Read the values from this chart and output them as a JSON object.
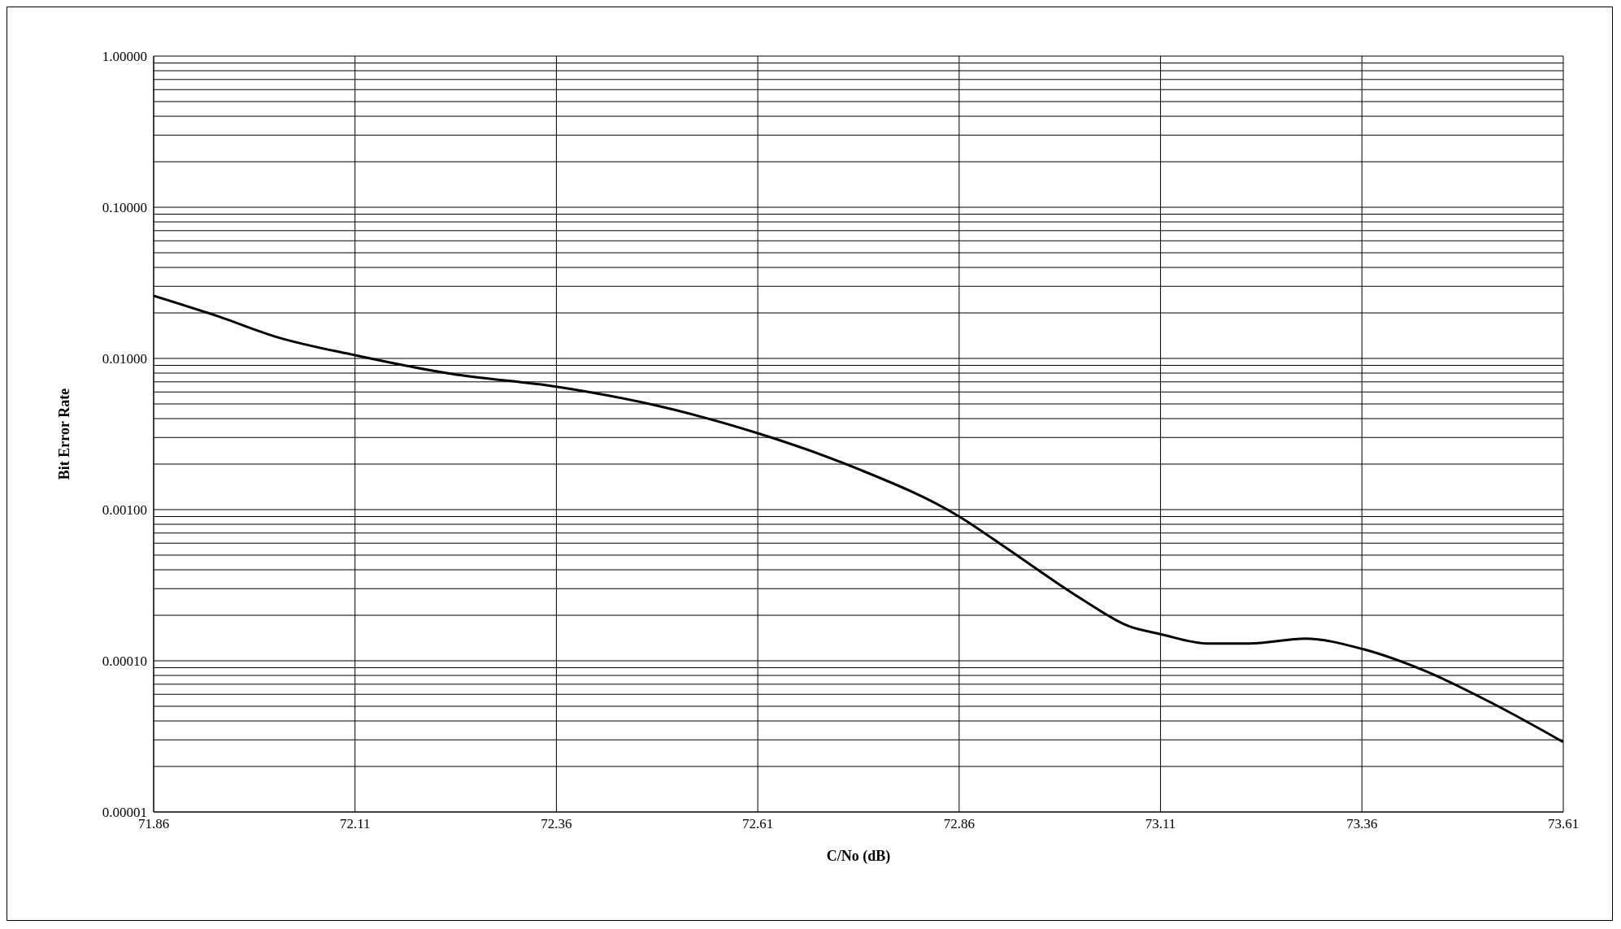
{
  "chart_data": {
    "type": "line",
    "xlabel": "C/No (dB)",
    "ylabel": "Bit Error Rate",
    "log": "y",
    "grid": true,
    "legend": false,
    "marker": "none",
    "line_style": "solid",
    "xlim": [
      71.86,
      73.61
    ],
    "xticks": [
      71.86,
      72.11,
      72.36,
      72.61,
      72.86,
      73.11,
      73.36,
      73.61
    ],
    "ylim": [
      1e-05,
      1
    ],
    "yticks": [
      {
        "value": 1e-05,
        "label": "0.00001"
      },
      {
        "value": 2e-05,
        "label": null
      },
      {
        "value": 3e-05,
        "label": null
      },
      {
        "value": 4e-05,
        "label": null
      },
      {
        "value": 5e-05,
        "label": null
      },
      {
        "value": 6e-05,
        "label": null
      },
      {
        "value": 7e-05,
        "label": null
      },
      {
        "value": 8e-05,
        "label": null
      },
      {
        "value": 9e-05,
        "label": null
      },
      {
        "value": 0.0001,
        "label": "0.00010"
      },
      {
        "value": 0.0002,
        "label": null
      },
      {
        "value": 0.0003,
        "label": null
      },
      {
        "value": 0.0004,
        "label": null
      },
      {
        "value": 0.0005,
        "label": null
      },
      {
        "value": 0.0006,
        "label": null
      },
      {
        "value": 0.0007,
        "label": null
      },
      {
        "value": 0.0008,
        "label": null
      },
      {
        "value": 0.0009,
        "label": null
      },
      {
        "value": 0.001,
        "label": "0.00100"
      },
      {
        "value": 0.002,
        "label": null
      },
      {
        "value": 0.003,
        "label": null
      },
      {
        "value": 0.004,
        "label": null
      },
      {
        "value": 0.005,
        "label": null
      },
      {
        "value": 0.006,
        "label": null
      },
      {
        "value": 0.007,
        "label": null
      },
      {
        "value": 0.008,
        "label": null
      },
      {
        "value": 0.009,
        "label": null
      },
      {
        "value": 0.01,
        "label": "0.01000"
      },
      {
        "value": 0.02,
        "label": null
      },
      {
        "value": 0.03,
        "label": null
      },
      {
        "value": 0.04,
        "label": null
      },
      {
        "value": 0.05,
        "label": null
      },
      {
        "value": 0.06,
        "label": null
      },
      {
        "value": 0.07,
        "label": null
      },
      {
        "value": 0.08,
        "label": null
      },
      {
        "value": 0.09,
        "label": null
      },
      {
        "value": 0.1,
        "label": "0.10000"
      },
      {
        "value": 0.2,
        "label": null
      },
      {
        "value": 0.3,
        "label": null
      },
      {
        "value": 0.4,
        "label": null
      },
      {
        "value": 0.5,
        "label": null
      },
      {
        "value": 0.6,
        "label": null
      },
      {
        "value": 0.7,
        "label": null
      },
      {
        "value": 0.8,
        "label": null
      },
      {
        "value": 0.9,
        "label": null
      },
      {
        "value": 1,
        "label": "1.00000"
      }
    ],
    "x": [
      71.86,
      71.94,
      72.01,
      72.11,
      72.23,
      72.36,
      72.49,
      72.61,
      72.73,
      72.86,
      72.92,
      73.01,
      73.07,
      73.11,
      73.17,
      73.22,
      73.29,
      73.36,
      73.44,
      73.52,
      73.61
    ],
    "series": [
      {
        "color": "#000000",
        "values": [
          0.026,
          0.019,
          0.014,
          0.0105,
          0.0079,
          0.0065,
          0.0048,
          0.0032,
          0.0019,
          0.0009,
          0.00055,
          0.00026,
          0.00017,
          0.00015,
          0.00013,
          0.00013,
          0.00014,
          0.00012,
          8.5e-05,
          5.3e-05,
          2.9e-05
        ]
      }
    ]
  }
}
